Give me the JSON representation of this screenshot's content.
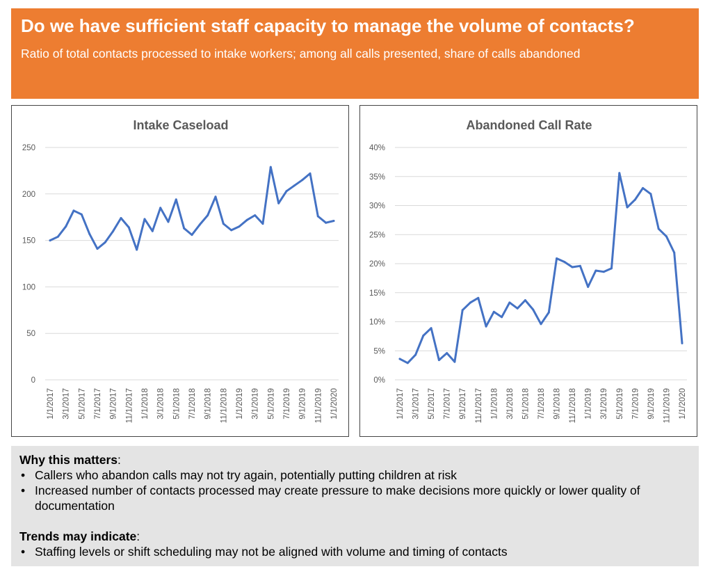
{
  "header": {
    "title": "Do we have sufficient staff capacity to manage the volume of contacts?",
    "subtitle": "Ratio of total contacts processed to intake workers; among all calls presented, share of calls abandoned"
  },
  "colors": {
    "accent": "#ED7D31",
    "line": "#4472C4",
    "panel": "#E4E4E4"
  },
  "chart_data": [
    {
      "type": "line",
      "title": "Intake Caseload",
      "xlabel": "",
      "ylabel": "",
      "ylim": [
        0,
        250
      ],
      "yticks": [
        "0",
        "50",
        "100",
        "150",
        "200",
        "250"
      ],
      "x_tick_labels": [
        "1/1/2017",
        "3/1/2017",
        "5/1/2017",
        "7/1/2017",
        "9/1/2017",
        "11/1/2017",
        "1/1/2018",
        "3/1/2018",
        "5/1/2018",
        "7/1/2018",
        "9/1/2018",
        "11/1/2018",
        "1/1/2019",
        "3/1/2019",
        "5/1/2019",
        "7/1/2019",
        "9/1/2019",
        "11/1/2019",
        "1/1/2020"
      ],
      "series": [
        {
          "name": "Intake Caseload",
          "values": [
            150,
            154,
            165,
            182,
            178,
            157,
            141,
            148,
            160,
            174,
            164,
            140,
            173,
            160,
            185,
            170,
            194,
            163,
            156,
            167,
            177,
            197,
            168,
            161,
            165,
            172,
            177,
            168,
            229,
            190,
            203,
            209,
            215,
            222,
            176,
            169,
            171
          ]
        }
      ]
    },
    {
      "type": "line",
      "title": "Abandoned Call Rate",
      "xlabel": "",
      "ylabel": "",
      "ylim": [
        0,
        40
      ],
      "yticks": [
        "0%",
        "5%",
        "10%",
        "15%",
        "20%",
        "25%",
        "30%",
        "35%",
        "40%"
      ],
      "x_tick_labels": [
        "1/1/2017",
        "3/1/2017",
        "5/1/2017",
        "7/1/2017",
        "9/1/2017",
        "11/1/2017",
        "1/1/2018",
        "3/1/2018",
        "5/1/2018",
        "7/1/2018",
        "9/1/2018",
        "11/1/2018",
        "1/1/2019",
        "3/1/2019",
        "5/1/2019",
        "7/1/2019",
        "9/1/2019",
        "11/1/2019",
        "1/1/2020"
      ],
      "series": [
        {
          "name": "Abandoned Call Rate",
          "values": [
            3.6,
            2.9,
            4.3,
            7.6,
            8.9,
            3.4,
            4.6,
            3.1,
            12.0,
            13.3,
            14.1,
            9.2,
            11.7,
            10.8,
            13.3,
            12.3,
            13.7,
            12.1,
            9.6,
            11.6,
            20.9,
            20.3,
            19.4,
            19.6,
            16.0,
            18.8,
            18.6,
            19.2,
            35.6,
            29.7,
            31.0,
            33.0,
            32.0,
            26.0,
            24.7,
            21.9,
            6.3
          ]
        }
      ]
    }
  ],
  "why_matters": {
    "heading": "Why this matters",
    "bullets": [
      "Callers who abandon calls may not try again, potentially putting children at risk",
      "Increased number of contacts processed may create pressure to make decisions more quickly or lower quality of documentation"
    ]
  },
  "trends": {
    "heading": "Trends may indicate",
    "bullets": [
      "Staffing levels or shift scheduling may not be aligned with volume and timing of contacts"
    ]
  }
}
